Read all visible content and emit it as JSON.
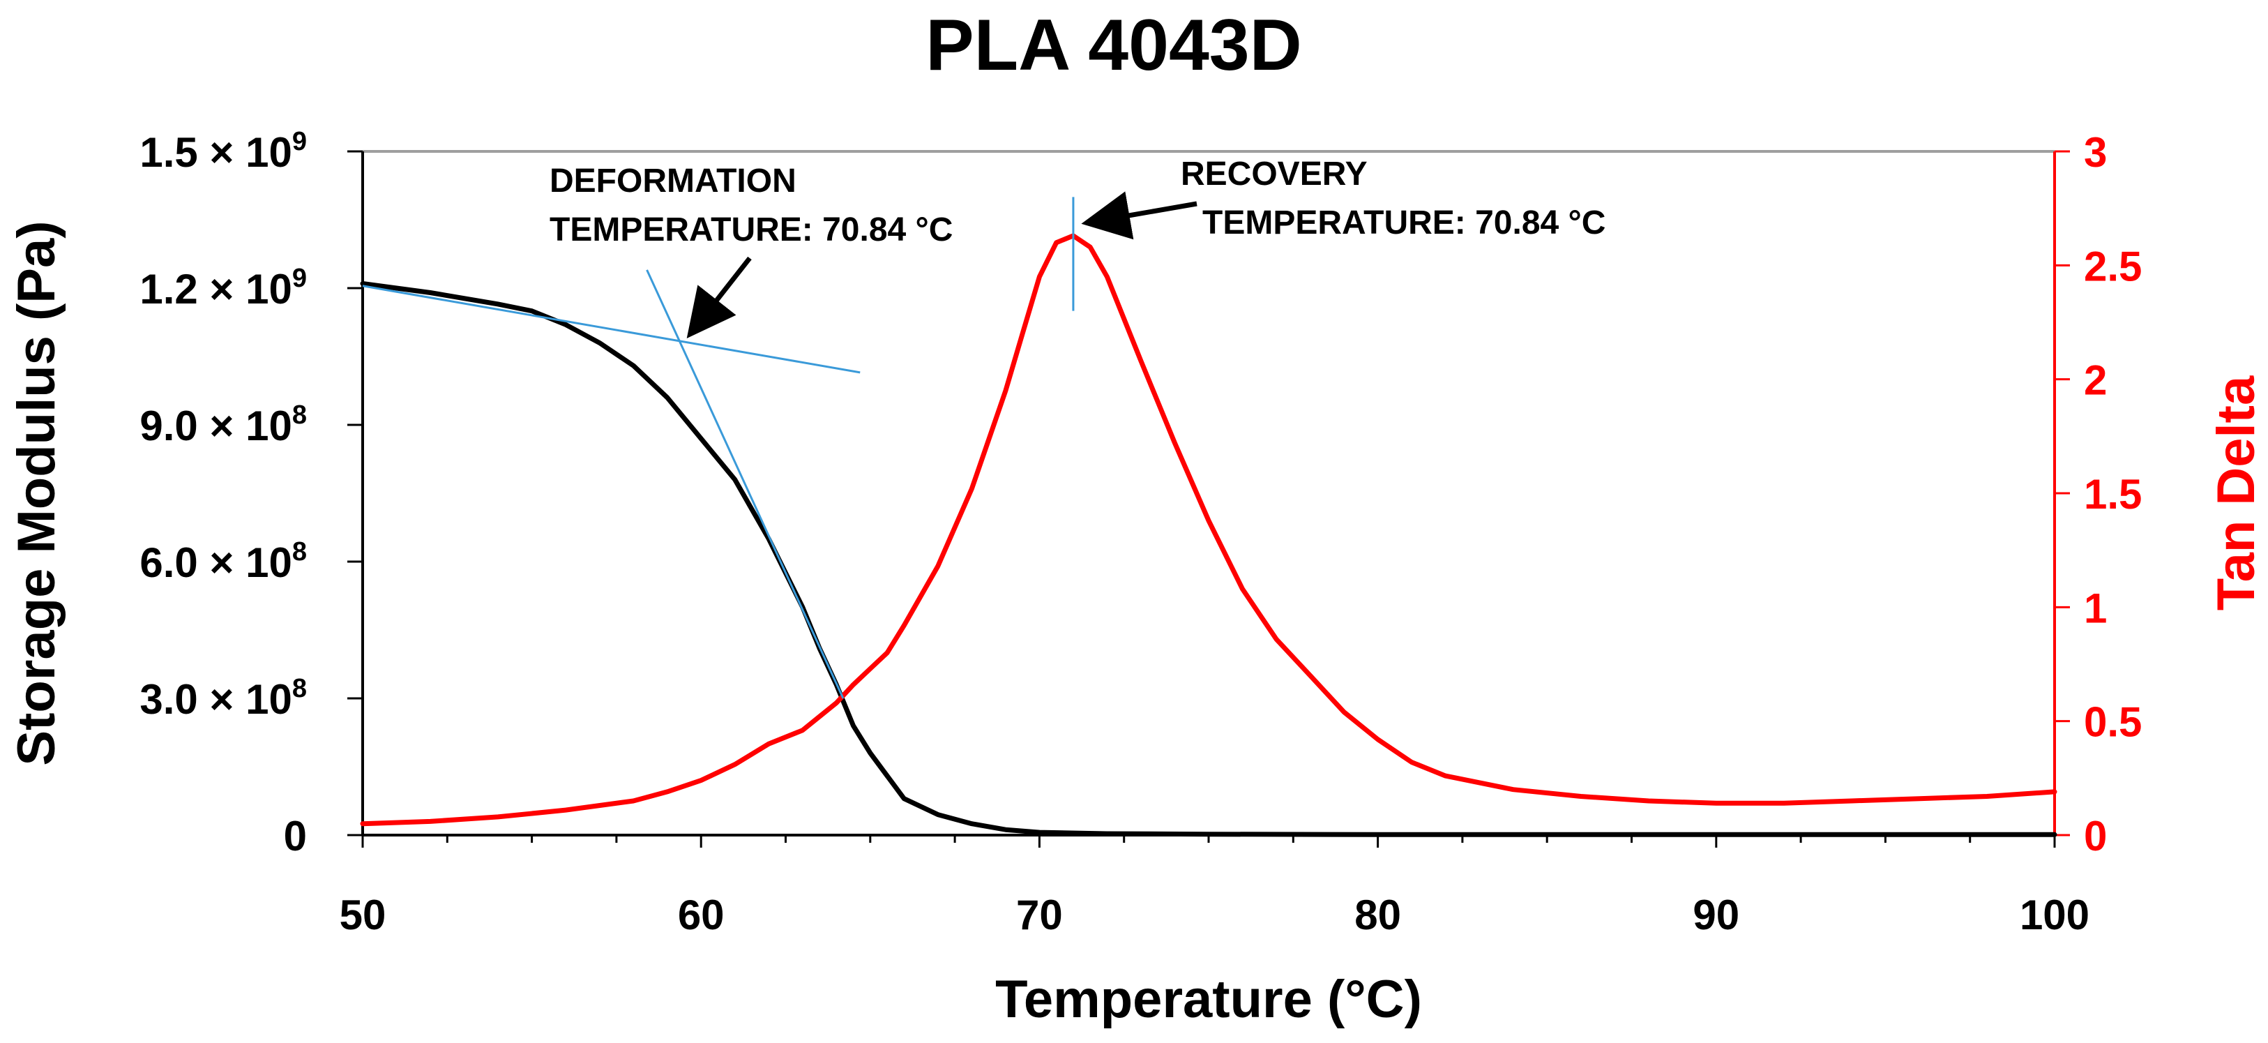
{
  "chart_data": {
    "type": "line",
    "title": "PLA 4043D",
    "xlabel": "Temperature (°C)",
    "ylabel": "Storage Modulus (Pa)",
    "y2label": "Tan Delta",
    "xlim": [
      50,
      100
    ],
    "ylim": [
      0,
      1500000000
    ],
    "y2lim": [
      0,
      3
    ],
    "x_ticks": [
      "50",
      "60",
      "70",
      "80",
      "90",
      "100"
    ],
    "x_tick_values": [
      50,
      60,
      70,
      80,
      90,
      100
    ],
    "y_ticks": [
      {
        "value": 0,
        "mantissa": "0",
        "exp": ""
      },
      {
        "value": 300000000,
        "mantissa": "3.0 × 10",
        "exp": "8"
      },
      {
        "value": 600000000,
        "mantissa": "6.0 × 10",
        "exp": "8"
      },
      {
        "value": 900000000,
        "mantissa": "9.0 × 10",
        "exp": "8"
      },
      {
        "value": 1200000000,
        "mantissa": "1.2 × 10",
        "exp": "9"
      },
      {
        "value": 1500000000,
        "mantissa": "1.5 × 10",
        "exp": "9"
      }
    ],
    "y2_ticks": [
      "0",
      "0.5",
      "1",
      "1.5",
      "2",
      "2.5",
      "3"
    ],
    "y2_tick_values": [
      0,
      0.5,
      1,
      1.5,
      2,
      2.5,
      3
    ],
    "series": [
      {
        "name": "Storage Modulus",
        "axis": "left",
        "color": "#000000",
        "x": [
          50,
          52,
          54,
          55,
          56,
          57,
          58,
          59,
          60,
          61,
          62,
          63,
          63.5,
          64,
          64.5,
          65,
          65.5,
          66,
          67,
          68,
          69,
          70,
          72,
          75,
          80,
          85,
          90,
          95,
          100
        ],
        "y": [
          1210000000,
          1190000000,
          1165000000,
          1150000000,
          1120000000,
          1080000000,
          1030000000,
          960000000,
          870000000,
          780000000,
          650000000,
          500000000,
          410000000,
          330000000,
          240000000,
          180000000,
          130000000,
          80000000,
          45000000,
          25000000,
          12000000,
          6000000,
          3000000,
          2000000,
          1000000,
          1000000,
          1000000,
          1000000,
          1000000
        ]
      },
      {
        "name": "Tan Delta",
        "axis": "right",
        "color": "#ff0000",
        "x": [
          50,
          52,
          54,
          56,
          58,
          59,
          60,
          61,
          62,
          63,
          63.5,
          64,
          64.5,
          65,
          65.5,
          66,
          67,
          68,
          69,
          69.5,
          70,
          70.5,
          71,
          71.5,
          72,
          73,
          74,
          75,
          76,
          77,
          78,
          79,
          80,
          81,
          82,
          84,
          86,
          88,
          90,
          92,
          94,
          96,
          98,
          100
        ],
        "y": [
          0.05,
          0.06,
          0.08,
          0.11,
          0.15,
          0.19,
          0.24,
          0.31,
          0.4,
          0.46,
          0.52,
          0.58,
          0.66,
          0.73,
          0.8,
          0.92,
          1.18,
          1.52,
          1.95,
          2.2,
          2.45,
          2.6,
          2.63,
          2.58,
          2.45,
          2.08,
          1.72,
          1.38,
          1.08,
          0.86,
          0.7,
          0.54,
          0.42,
          0.32,
          0.26,
          0.2,
          0.17,
          0.15,
          0.14,
          0.14,
          0.15,
          0.16,
          0.17,
          0.19
        ]
      }
    ],
    "tangent_lines": [
      {
        "name": "glassy-tangent",
        "color": "#3a9ad9",
        "x": [
          50,
          64.7
        ],
        "y": [
          1205000000,
          1015000000
        ]
      },
      {
        "name": "transition-tangent",
        "color": "#3a9ad9",
        "x": [
          58.4,
          64.2
        ],
        "y": [
          1240000000,
          300000000
        ]
      },
      {
        "name": "peak-marker",
        "color": "#3a9ad9",
        "x": [
          71,
          71
        ],
        "y2": [
          2.3,
          2.8
        ]
      }
    ],
    "annotations": [
      {
        "name": "deformation",
        "lines": [
          "DEFORMATION",
          "TEMPERATURE: 70.84 °C"
        ]
      },
      {
        "name": "recovery",
        "lines": [
          "RECOVERY",
          "TEMPERATURE: 70.84 °C"
        ]
      }
    ]
  }
}
